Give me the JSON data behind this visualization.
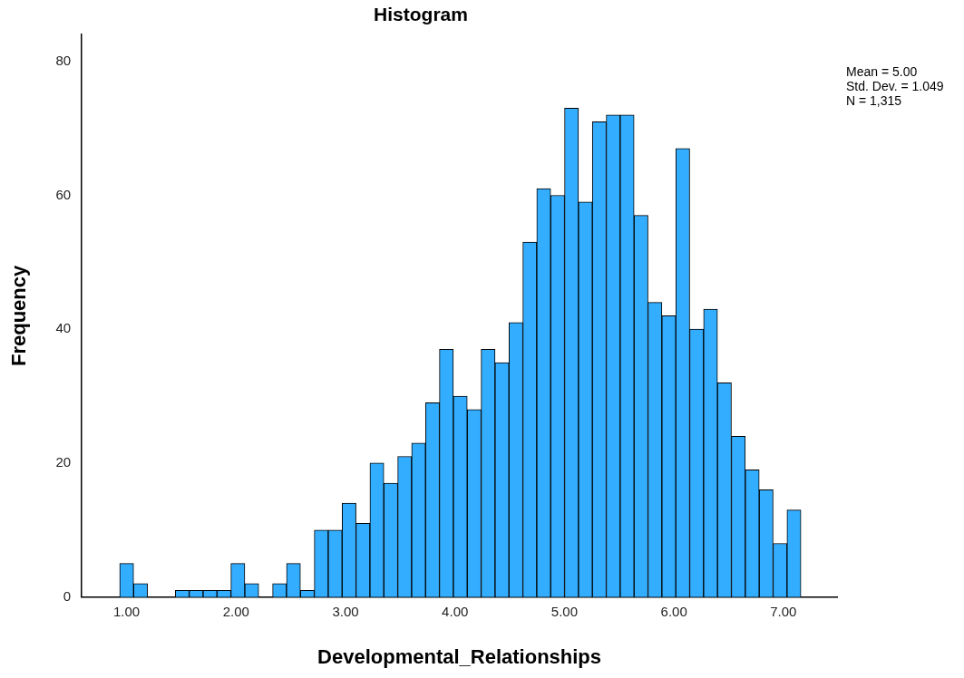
{
  "chart_data": {
    "type": "histogram",
    "title": "Histogram",
    "xlabel": "Developmental_Relationships",
    "ylabel": "Frequency",
    "bins": [
      0.937,
      1.064,
      1.191,
      1.318,
      1.445,
      1.572,
      1.699,
      1.826,
      1.953,
      2.08,
      2.207,
      2.334,
      2.461,
      2.588,
      2.715,
      2.842,
      2.969,
      3.096,
      3.223,
      3.35,
      3.477,
      3.604,
      3.731,
      3.858,
      3.985,
      4.112,
      4.239,
      4.366,
      4.493,
      4.62,
      4.747,
      4.874,
      5.001,
      5.128,
      5.255,
      5.382,
      5.509,
      5.636,
      5.763,
      5.89,
      6.017,
      6.144,
      6.271,
      6.398,
      6.525,
      6.652,
      6.779,
      6.906,
      7.033,
      7.16
    ],
    "values": [
      5,
      2,
      0,
      0,
      1,
      1,
      1,
      1,
      5,
      2,
      0,
      2,
      5,
      1,
      10,
      10,
      14,
      11,
      20,
      17,
      21,
      23,
      29,
      37,
      30,
      28,
      37,
      35,
      41,
      53,
      61,
      60,
      73,
      59,
      71,
      72,
      72,
      57,
      44,
      42,
      67,
      40,
      43,
      32,
      24,
      19,
      16,
      8,
      13
    ],
    "color": "#33adff",
    "xlim": [
      0.59,
      7.49
    ],
    "xticks": [
      {
        "value": 1,
        "label": "1.00"
      },
      {
        "value": 2,
        "label": "2.00"
      },
      {
        "value": 3,
        "label": "3.00"
      },
      {
        "value": 4,
        "label": "4.00"
      },
      {
        "value": 5,
        "label": "5.00"
      },
      {
        "value": 6,
        "label": "6.00"
      },
      {
        "value": 7,
        "label": "7.00"
      }
    ],
    "ylim": [
      0,
      84
    ],
    "yticks": [
      0,
      20,
      40,
      60,
      80
    ],
    "grid": false,
    "legend": false,
    "annotations": [
      "Mean = 5.00",
      "Std. Dev. = 1.049",
      "N = 1,315"
    ]
  }
}
